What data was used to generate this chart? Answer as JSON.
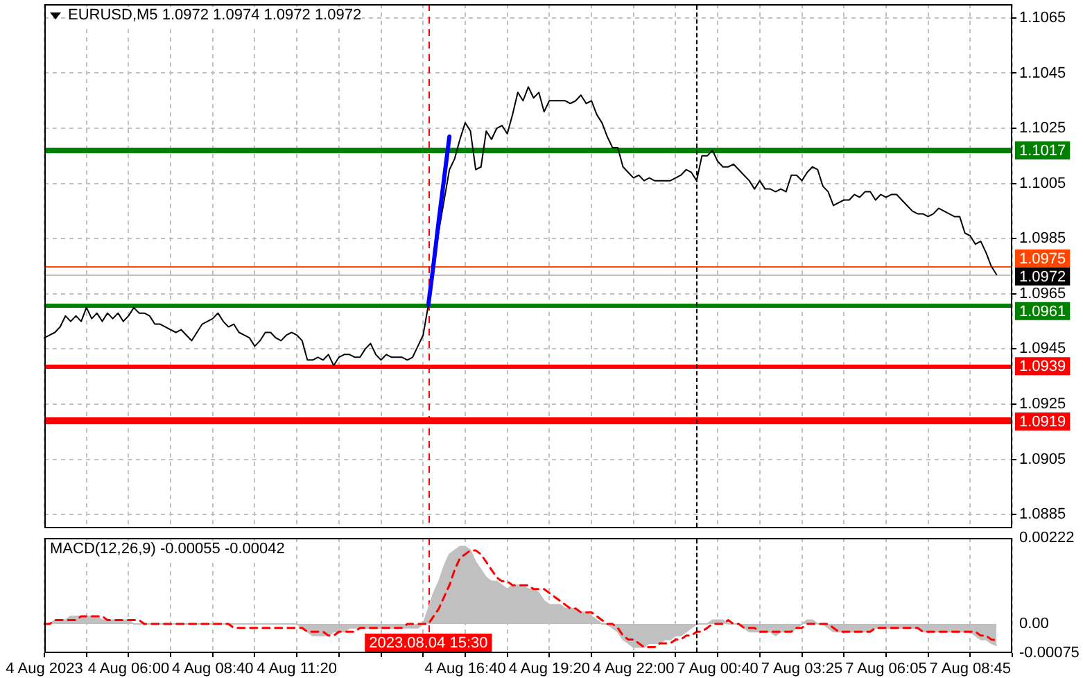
{
  "chart_data": [
    {
      "type": "line",
      "title": "EURUSD,M5 1.0972 1.0974 1.0972 1.0972",
      "tick_labels": "y",
      "ylim": [
        1.088,
        1.107
      ],
      "yticks": [
        1.0885,
        1.0905,
        1.0925,
        1.0945,
        1.0965,
        1.0985,
        1.1005,
        1.1025,
        1.1045,
        1.1065
      ],
      "grid": true,
      "categories": [
        "4 Aug 2023",
        null,
        null,
        null,
        null,
        null,
        null,
        null,
        null,
        null,
        null,
        null,
        null,
        null,
        null,
        null,
        "4 Aug 06:00",
        null,
        null,
        null,
        null,
        null,
        null,
        null,
        null,
        null,
        null,
        null,
        null,
        null,
        null,
        null,
        "4 Aug 08:40",
        null,
        null,
        null,
        null,
        null,
        null,
        null,
        null,
        null,
        null,
        null,
        null,
        null,
        null,
        null,
        "4 Aug 11:20",
        null,
        null,
        null,
        null,
        null,
        null,
        null,
        null,
        null,
        null,
        null,
        null,
        null,
        null,
        null,
        null,
        null,
        null,
        null,
        null,
        null,
        null,
        null,
        null,
        "2023.08.04 15:30",
        null,
        null,
        null,
        null,
        null,
        null,
        "4 Aug 16:40",
        null,
        null,
        null,
        null,
        null,
        null,
        null,
        null,
        null,
        null,
        null,
        null,
        null,
        null,
        null,
        "4 Aug 19:20",
        null,
        null,
        null,
        null,
        null,
        null,
        null,
        null,
        null,
        null,
        null,
        null,
        null,
        null,
        null,
        "4 Aug 22:00",
        null,
        null,
        null,
        null,
        null,
        null,
        null,
        null,
        null,
        null,
        null,
        null,
        null,
        null,
        null,
        "7 Aug 00:40",
        null,
        null,
        null,
        null,
        null,
        null,
        null,
        null,
        null,
        null,
        null,
        null,
        null,
        null,
        null,
        "7 Aug 03:25",
        null,
        null,
        null,
        null,
        null,
        null,
        null,
        null,
        null,
        null,
        null,
        null,
        null,
        null,
        null,
        "7 Aug 06:05",
        null,
        null,
        null,
        null,
        null,
        null,
        null,
        null,
        null,
        null,
        null,
        null,
        null,
        null,
        null,
        "7 Aug 08:45",
        null,
        null,
        null,
        null,
        null,
        null,
        null,
        null
      ],
      "series": [
        {
          "color": "#000000",
          "values": [
            1.0949,
            1.095,
            1.0951,
            1.0953,
            1.0957,
            1.0955,
            1.0957,
            1.0955,
            1.096,
            1.0956,
            1.0958,
            1.0955,
            1.0958,
            1.0956,
            1.0958,
            1.0955,
            1.0957,
            1.096,
            1.0958,
            1.0958,
            1.0957,
            1.0954,
            1.0954,
            1.0953,
            1.0952,
            1.0951,
            1.0952,
            1.095,
            1.0948,
            1.0951,
            1.0954,
            1.0955,
            1.0956,
            1.0958,
            1.0955,
            1.0953,
            1.0954,
            1.0951,
            1.095,
            1.0949,
            1.0946,
            1.0948,
            1.0951,
            1.0951,
            1.0949,
            1.0948,
            1.095,
            1.0951,
            1.095,
            1.0948,
            1.0941,
            1.0941,
            1.0942,
            1.0941,
            1.0943,
            1.0939,
            1.0942,
            1.0943,
            1.0943,
            1.0942,
            1.0942,
            1.0945,
            1.0947,
            1.0943,
            1.0941,
            1.0943,
            1.0942,
            1.0942,
            1.0942,
            1.0941,
            1.0942,
            1.0946,
            1.095,
            1.0961,
            1.0977,
            1.0988,
            1.0999,
            1.101,
            1.1014,
            1.1021,
            1.1027,
            1.1024,
            1.101,
            1.1011,
            1.1024,
            1.1021,
            1.1025,
            1.1026,
            1.1023,
            1.103,
            1.1038,
            1.1035,
            1.104,
            1.1036,
            1.1038,
            1.1031,
            1.1035,
            1.1035,
            1.1035,
            1.1035,
            1.1034,
            1.1035,
            1.1037,
            1.1034,
            1.1035,
            1.103,
            1.1027,
            1.1022,
            1.1018,
            1.1018,
            1.1011,
            1.1009,
            1.1007,
            1.1008,
            1.1006,
            1.1007,
            1.1006,
            1.1006,
            1.1006,
            1.1006,
            1.1007,
            1.1008,
            1.101,
            1.1009,
            1.1006,
            1.1015,
            1.1015,
            1.1017,
            1.1013,
            1.1011,
            1.1011,
            1.1012,
            1.101,
            1.1008,
            1.1006,
            1.1003,
            1.1006,
            1.1003,
            1.1003,
            1.1002,
            1.1003,
            1.1002,
            1.1008,
            1.1008,
            1.1006,
            1.1009,
            1.1011,
            1.101,
            1.1004,
            1.1002,
            1.0997,
            1.0998,
            1.0999,
            1.0999,
            1.1001,
            1.1,
            1.1002,
            1.1002,
            1.0999,
            1.1001,
            1.1,
            1.1001,
            1.1001,
            1.0999,
            1.0997,
            1.0995,
            1.0994,
            1.0994,
            1.0993,
            1.0994,
            1.0996,
            1.0995,
            1.0994,
            1.0993,
            1.0993,
            1.0987,
            1.0986,
            1.0983,
            1.0984,
            1.098,
            1.0975,
            1.0972,
            null,
            null,
            null
          ]
        },
        {
          "color": "#0000ff",
          "values": [
            null,
            null,
            null,
            null,
            null,
            null,
            null,
            null,
            null,
            null,
            null,
            null,
            null,
            null,
            null,
            null,
            null,
            null,
            null,
            null,
            null,
            null,
            null,
            null,
            null,
            null,
            null,
            null,
            null,
            null,
            null,
            null,
            null,
            null,
            null,
            null,
            null,
            null,
            null,
            null,
            null,
            null,
            null,
            null,
            null,
            null,
            null,
            null,
            null,
            null,
            null,
            null,
            null,
            null,
            null,
            null,
            null,
            null,
            null,
            null,
            null,
            null,
            null,
            null,
            null,
            null,
            null,
            null,
            null,
            null,
            null,
            null,
            null,
            1.0961,
            1.0976,
            1.0992,
            1.1007,
            1.1022,
            null,
            null,
            null,
            null,
            null,
            null,
            null,
            null,
            null,
            null,
            null,
            null,
            null,
            null,
            null,
            null,
            null,
            null,
            null,
            null,
            null,
            null,
            null,
            null,
            null,
            null,
            null,
            null,
            null,
            null,
            null,
            null,
            null,
            null,
            null,
            null,
            null,
            null,
            null,
            null,
            null,
            null,
            null,
            null,
            null,
            null,
            null,
            null,
            null,
            null,
            null,
            null,
            null,
            null,
            null,
            null,
            null,
            null,
            null,
            null,
            null,
            null,
            null,
            null,
            null,
            null,
            null,
            null,
            null,
            null,
            null,
            null,
            null,
            null,
            null,
            null,
            null,
            null,
            null,
            null,
            null,
            null,
            null,
            null,
            null,
            null,
            null,
            null,
            null,
            null,
            null,
            null,
            null,
            null,
            null,
            null,
            null,
            null,
            null,
            null,
            null,
            null,
            null,
            null,
            null,
            null,
            null
          ]
        }
      ],
      "ref_lines": [
        {
          "axis": "y",
          "value": 1.1017,
          "label": "1.1017",
          "color": "#008000"
        },
        {
          "axis": "y",
          "value": 1.0975,
          "label": "1.0975",
          "color": "#ff4500"
        },
        {
          "axis": "y",
          "value": 1.0972,
          "label": "1.0972",
          "color": "#c0c0c0"
        },
        {
          "axis": "y",
          "value": 1.0961,
          "label": "1.0961",
          "color": "#008000"
        },
        {
          "axis": "y",
          "value": 1.0939,
          "label": "1.0939",
          "color": "#ff0000"
        },
        {
          "axis": "y",
          "value": 1.0919,
          "label": "1.0919",
          "color": "#ff0000"
        },
        {
          "axis": "x",
          "value": "2023.08.04 15:30",
          "color": "#ff0000",
          "line_style": "dashed"
        }
      ]
    },
    {
      "type": "area",
      "title": "MACD(12,26,9) -0.00055 -0.00042",
      "ylim": [
        -0.00075,
        0.00222
      ],
      "yticks": [
        -0.00075,
        {
          "value": 0,
          "label": "0.00"
        },
        0.00222
      ],
      "grid": "x",
      "categories": [
        "4 Aug 2023",
        null,
        null,
        null,
        null,
        null,
        null,
        null,
        null,
        null,
        null,
        null,
        null,
        null,
        null,
        null,
        "4 Aug 06:00",
        null,
        null,
        null,
        null,
        null,
        null,
        null,
        null,
        null,
        null,
        null,
        null,
        null,
        null,
        null,
        "4 Aug 08:40",
        null,
        null,
        null,
        null,
        null,
        null,
        null,
        null,
        null,
        null,
        null,
        null,
        null,
        null,
        null,
        "4 Aug 11:20",
        null,
        null,
        null,
        null,
        null,
        null,
        null,
        null,
        null,
        null,
        null,
        null,
        null,
        null,
        null,
        null,
        null,
        null,
        null,
        null,
        null,
        null,
        null,
        null,
        "2023.08.04 15:30",
        null,
        null,
        null,
        null,
        null,
        null,
        "4 Aug 16:40",
        null,
        null,
        null,
        null,
        null,
        null,
        null,
        null,
        null,
        null,
        null,
        null,
        null,
        null,
        null,
        "4 Aug 19:20",
        null,
        null,
        null,
        null,
        null,
        null,
        null,
        null,
        null,
        null,
        null,
        null,
        null,
        null,
        null,
        "4 Aug 22:00",
        null,
        null,
        null,
        null,
        null,
        null,
        null,
        null,
        null,
        null,
        null,
        null,
        null,
        null,
        null,
        "7 Aug 00:40",
        null,
        null,
        null,
        null,
        null,
        null,
        null,
        null,
        null,
        null,
        null,
        null,
        null,
        null,
        null,
        "7 Aug 03:25",
        null,
        null,
        null,
        null,
        null,
        null,
        null,
        null,
        null,
        null,
        null,
        null,
        null,
        null,
        null,
        "7 Aug 06:05",
        null,
        null,
        null,
        null,
        null,
        null,
        null,
        null,
        null,
        null,
        null,
        null,
        null,
        null,
        null,
        "7 Aug 08:45",
        null,
        null,
        null,
        null,
        null,
        null,
        null,
        null
      ],
      "series": [
        {
          "color": "#c0c0c0",
          "values": [
            0,
            0,
            0.0001,
            0.0001,
            0.0001,
            0.0002,
            0.0002,
            0.0002,
            0.0002,
            0.0002,
            0.0002,
            0.0001,
            0.0001,
            0.0001,
            0.0001,
            0.0001,
            0.0001,
            0,
            0,
            0,
            0,
            0,
            0,
            0,
            0,
            0,
            0,
            0,
            0,
            0,
            0,
            0,
            0,
            0,
            0,
            0,
            0,
            0,
            0,
            0,
            0,
            0,
            0,
            0,
            0,
            0,
            0,
            0,
            0,
            -0.0001,
            -0.0002,
            -0.0003,
            -0.0003,
            -0.0003,
            -0.0003,
            -0.0002,
            -0.0002,
            -0.0002,
            -0.0001,
            -0.0001,
            -0.0001,
            -0.0001,
            -0.0001,
            -0.0001,
            -0.0001,
            -0.0001,
            -0.0001,
            -0.0001,
            -0.0001,
            -0.0001,
            -0.0001,
            -0.0001,
            0,
            0.0004,
            0.0008,
            0.0011,
            0.0015,
            0.0018,
            0.0019,
            0.002,
            0.002,
            0.0019,
            0.0016,
            0.0014,
            0.0012,
            0.0011,
            0.0011,
            0.001,
            0.0009,
            0.001,
            0.001,
            0.001,
            0.0009,
            0.0009,
            0.0008,
            0.0006,
            0.0005,
            0.0005,
            0.0005,
            0.0004,
            0.0004,
            0.0004,
            0.0003,
            0.0003,
            0.0002,
            0.0001,
            0,
            0,
            -0.0001,
            -0.0002,
            -0.0004,
            -0.0005,
            -0.0006,
            -0.0006,
            -0.0006,
            -0.0005,
            -0.0005,
            -0.0005,
            -0.0004,
            -0.0004,
            -0.0003,
            -0.0003,
            -0.0002,
            -0.0001,
            0,
            0,
            0,
            0.0001,
            0.0001,
            0.0001,
            0,
            0,
            0,
            -0.0001,
            -0.0002,
            -0.0002,
            -0.0002,
            -0.0002,
            -0.0002,
            -0.0003,
            -0.0002,
            -0.0002,
            -0.0002,
            -0.0001,
            0,
            0.0001,
            0.0001,
            0,
            0,
            -0.0001,
            -0.0002,
            -0.0002,
            -0.0002,
            -0.0002,
            -0.0002,
            -0.0002,
            -0.0002,
            -0.0002,
            -0.0001,
            -0.0001,
            -0.0001,
            -0.0001,
            -0.0001,
            -0.0001,
            -0.0001,
            -0.0001,
            -0.0001,
            -0.0002,
            -0.0002,
            -0.0002,
            -0.0002,
            -0.0002,
            -0.0002,
            -0.0002,
            -0.0002,
            -0.0002,
            -0.0002,
            -0.0003,
            -0.0004,
            -0.0004,
            -0.0005,
            -0.00055,
            null,
            null,
            null
          ]
        },
        {
          "type": "line",
          "color": "#ff0000",
          "line_style": "dashed",
          "values": [
            0,
            0,
            0.0001,
            0.0001,
            0.0001,
            0.0001,
            0.0001,
            0.0002,
            0.0002,
            0.0002,
            0.0002,
            0.0002,
            0.0001,
            0.0001,
            0.0001,
            0.0001,
            0.0001,
            0.0001,
            0.0001,
            0,
            0,
            0,
            0,
            0,
            0,
            0,
            0,
            0,
            0,
            0,
            0,
            0,
            0,
            0,
            0,
            0,
            -0.0001,
            -0.0001,
            -0.0001,
            -0.0001,
            -0.0001,
            -0.0001,
            -0.0001,
            -0.0001,
            -0.0001,
            -0.0001,
            -0.0001,
            -0.0001,
            -0.0001,
            -0.0001,
            -0.0002,
            -0.0002,
            -0.0002,
            -0.0002,
            -0.0003,
            -0.0003,
            -0.0002,
            -0.0002,
            -0.0002,
            -0.0002,
            -0.0001,
            -0.0001,
            -0.0001,
            -0.0001,
            -0.0001,
            -0.0001,
            -0.0001,
            -0.0001,
            -0.0001,
            0,
            0,
            0,
            0,
            0,
            0.0002,
            0.0004,
            0.0007,
            0.001,
            0.0014,
            0.0017,
            0.0018,
            0.0019,
            0.0019,
            0.0018,
            0.0016,
            0.0014,
            0.0012,
            0.0011,
            0.0011,
            0.001,
            0.001,
            0.001,
            0.001,
            0.0009,
            0.0009,
            0.0009,
            0.0008,
            0.0007,
            0.0006,
            0.0005,
            0.0004,
            0.0004,
            0.0003,
            0.0003,
            0.0003,
            0.0002,
            0.0001,
            0,
            0,
            -0.0001,
            -0.0003,
            -0.0004,
            -0.0004,
            -0.0005,
            -0.0006,
            -0.0006,
            -0.0006,
            -0.0005,
            -0.0005,
            -0.0005,
            -0.0004,
            -0.0004,
            -0.0003,
            -0.0003,
            -0.0002,
            -0.0002,
            -0.0001,
            0,
            0,
            0,
            0.0001,
            0,
            0,
            -0.0001,
            -0.0001,
            -0.0001,
            -0.0002,
            -0.0002,
            -0.0002,
            -0.0002,
            -0.0002,
            -0.0002,
            -0.0002,
            -0.0001,
            -0.0001,
            0,
            0,
            0,
            0,
            0,
            -0.0001,
            -0.0002,
            -0.0002,
            -0.0002,
            -0.0002,
            -0.0002,
            -0.0002,
            -0.0002,
            -0.0001,
            -0.0001,
            -0.0001,
            -0.0001,
            -0.0001,
            -0.0001,
            -0.0001,
            -0.0001,
            -0.0001,
            -0.0002,
            -0.0002,
            -0.0002,
            -0.0002,
            -0.0002,
            -0.0002,
            -0.0002,
            -0.0002,
            -0.0002,
            -0.0002,
            -0.0002,
            -0.0003,
            -0.0003,
            -0.0004,
            -0.00042,
            null,
            null,
            null
          ]
        }
      ],
      "ref_lines": [
        {
          "axis": "x",
          "value": "2023.08.04 15:30",
          "color": "#ff0000",
          "line_style": "dashed"
        }
      ]
    }
  ]
}
